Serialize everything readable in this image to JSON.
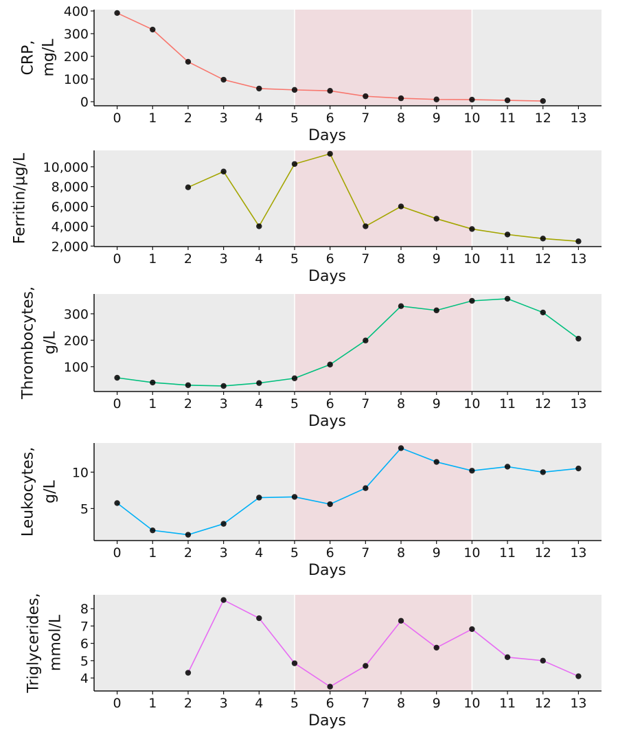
{
  "chart_data": [
    {
      "type": "line",
      "ylabel": [
        "CRP,",
        "mg/L"
      ],
      "xlabel": "Days",
      "color": "#F8766D",
      "x": [
        0,
        1,
        2,
        3,
        4,
        5,
        6,
        7,
        8,
        9,
        10,
        11,
        12
      ],
      "values": [
        391,
        318,
        176,
        97,
        58,
        52,
        48,
        24,
        15,
        10,
        9,
        6,
        3
      ],
      "yticks": [
        0,
        100,
        200,
        300,
        400
      ],
      "ytick_labels": [
        "0",
        "100",
        "200",
        "300",
        "400"
      ],
      "ylim": [
        -18,
        406
      ]
    },
    {
      "type": "line",
      "ylabel": [
        "Ferritin/µg/L"
      ],
      "xlabel": "Days",
      "color": "#A3A500",
      "x": [
        2,
        3,
        4,
        5,
        6,
        7,
        8,
        9,
        10,
        11,
        12,
        13
      ],
      "values": [
        7930,
        9520,
        4000,
        10280,
        11310,
        4000,
        6000,
        4760,
        3720,
        3170,
        2760,
        2480
      ],
      "yticks": [
        2000,
        4000,
        6000,
        8000,
        10000
      ],
      "ytick_labels": [
        "2,000",
        "4,000",
        "6,000",
        "8,000",
        "10,000"
      ],
      "ylim": [
        1950,
        11650
      ]
    },
    {
      "type": "line",
      "ylabel": [
        "Thrombocytes,",
        "g/L"
      ],
      "xlabel": "Days",
      "color": "#00BF7D",
      "x": [
        0,
        1,
        2,
        3,
        4,
        5,
        6,
        7,
        8,
        9,
        10,
        11,
        12,
        13
      ],
      "values": [
        58,
        40,
        30,
        27,
        38,
        56,
        108,
        199,
        329,
        313,
        349,
        357,
        305,
        206
      ],
      "yticks": [
        100,
        200,
        300
      ],
      "ytick_labels": [
        "100",
        "200",
        "300"
      ],
      "ylim": [
        6,
        375
      ]
    },
    {
      "type": "line",
      "ylabel": [
        "Leukocytes,",
        "g/L"
      ],
      "xlabel": "Days",
      "color": "#00B0F6",
      "x": [
        0,
        1,
        2,
        3,
        4,
        5,
        6,
        7,
        8,
        9,
        10,
        11,
        12,
        13
      ],
      "values": [
        5.75,
        2.0,
        1.4,
        2.9,
        6.5,
        6.6,
        5.6,
        7.8,
        13.3,
        11.4,
        10.2,
        10.75,
        10.0,
        10.5
      ],
      "yticks": [
        5,
        10
      ],
      "ytick_labels": [
        "5",
        "10"
      ],
      "ylim": [
        0.6,
        14
      ]
    },
    {
      "type": "line",
      "ylabel": [
        "Triglycerides,",
        "mmol/L"
      ],
      "xlabel": "Days",
      "color": "#E76BF3",
      "x": [
        2,
        3,
        4,
        5,
        6,
        7,
        8,
        9,
        10,
        11,
        12,
        13
      ],
      "values": [
        4.3,
        8.5,
        7.45,
        4.85,
        3.5,
        4.7,
        7.3,
        5.75,
        6.82,
        5.2,
        5.0,
        4.1
      ],
      "yticks": [
        4,
        5,
        6,
        7,
        8
      ],
      "ytick_labels": [
        "4",
        "5",
        "6",
        "7",
        "8"
      ],
      "ylim": [
        3.25,
        8.8
      ]
    }
  ],
  "shared": {
    "xticks": [
      0,
      1,
      2,
      3,
      4,
      5,
      6,
      7,
      8,
      9,
      10,
      11,
      12,
      13
    ],
    "xlim": [
      -0.65,
      13.65
    ],
    "highlight_range": [
      5,
      10
    ],
    "highlight_color": "#F0DCDF",
    "panel_background": "#EBEBEB",
    "point_color": "#000000",
    "grid": false
  }
}
